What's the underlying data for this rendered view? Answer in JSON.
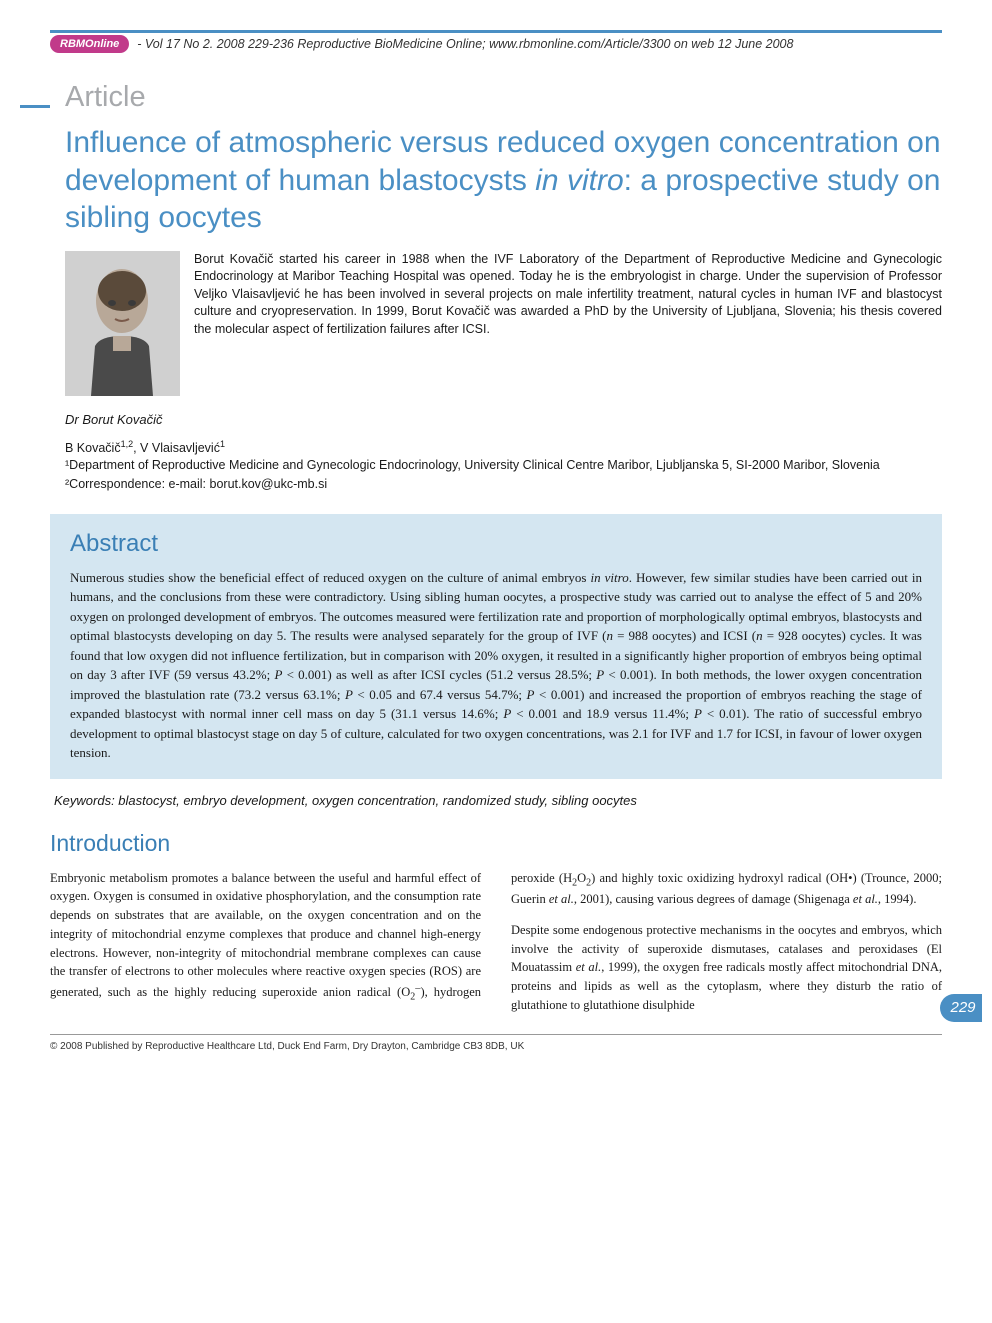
{
  "header": {
    "logo_text": "RBMOnline",
    "citation": "- Vol 17 No 2. 2008 229-236 Reproductive BioMedicine Online; www.rbmonline.com/Article/3300 on web 12 June 2008"
  },
  "article_label": "Article",
  "title_parts": {
    "pre": "Influence of atmospheric versus reduced oxygen concentration on development of human blastocysts ",
    "italic": "in vitro",
    "post": ": a prospective study on sibling oocytes"
  },
  "bio": "Borut Kovačič started his career in 1988 when the IVF Laboratory of the Department of Reproductive Medicine and Gynecologic Endocrinology at Maribor Teaching Hospital was opened. Today he is the embryologist in charge. Under the supervision of Professor Veljko Vlaisavljević he has been involved in several projects on male infertility treatment, natural cycles in human IVF and blastocyst culture and cryopreservation. In 1999, Borut Kovačič was awarded a PhD by the University of Ljubljana, Slovenia; his thesis covered the molecular aspect of fertilization failures after ICSI.",
  "author_name": "Dr Borut Kovačič",
  "authors_line_html": "B Kovačič<sup>1,2</sup>, V Vlaisavljević<sup>1</sup>",
  "affiliation1": "¹Department of Reproductive Medicine and Gynecologic Endocrinology, University Clinical Centre Maribor, Ljubljanska 5, SI-2000 Maribor, Slovenia",
  "affiliation2": "²Correspondence: e-mail: borut.kov@ukc-mb.si",
  "abstract": {
    "heading": "Abstract",
    "text_html": "Numerous studies show the beneficial effect of reduced oxygen on the culture of animal embryos <em>in vitro</em>. However, few similar studies have been carried out in humans, and the conclusions from these were contradictory. Using sibling human oocytes, a prospective study was carried out to analyse the effect of 5 and 20% oxygen on prolonged development of embryos. The outcomes measured were fertilization rate and proportion of morphologically optimal embryos, blastocysts and optimal blastocysts developing on day 5. The results were analysed separately for the group of IVF (<em>n</em> = 988 oocytes) and ICSI (<em>n</em> = 928 oocytes) cycles. It was found that low oxygen did not influence fertilization, but in comparison with 20% oxygen, it resulted in a significantly higher proportion of embryos being optimal on day 3 after IVF (59 versus 43.2%; <em>P</em> < 0.001) as well as after ICSI cycles (51.2 versus 28.5%; <em>P</em> < 0.001). In both methods, the lower oxygen concentration improved the blastulation rate (73.2 versus 63.1%; <em>P</em> < 0.05 and 67.4 versus 54.7%; <em>P</em> < 0.001) and increased the proportion of embryos reaching the stage of expanded blastocyst with normal inner cell mass on day 5 (31.1 versus 14.6%; <em>P</em> < 0.001 and 18.9 versus 11.4%; <em>P</em> < 0.01). The ratio of successful embryo development to optimal blastocyst stage on day 5 of culture, calculated for two oxygen concentrations, was 2.1 for IVF and 1.7 for ICSI, in favour of lower oxygen tension."
  },
  "keywords": "Keywords: blastocyst, embryo development, oxygen concentration, randomized study, sibling oocytes",
  "introduction": {
    "heading": "Introduction",
    "para1_html": "Embryonic metabolism promotes a balance between the useful and harmful effect of oxygen. Oxygen is consumed in oxidative phosphorylation, and the consumption rate depends on substrates that are available, on the oxygen concentration and on the integrity of mitochondrial enzyme complexes that produce and channel high-energy electrons. However, non-integrity of mitochondrial membrane complexes can cause the transfer of electrons to other molecules where reactive oxygen species (ROS) are generated, such as the highly reducing superoxide anion radical (O<sub>2</sub><sup>–</sup>), hydrogen peroxide (H<sub>2</sub>O<sub>2</sub>) and highly toxic oxidizing hydroxyl radical (OH•) (Trounce, 2000; Guerin <em>et al.</em>, 2001), causing various degrees of damage (Shigenaga <em>et al.</em>, 1994).",
    "para2_html": "Despite some endogenous protective mechanisms in the oocytes and embryos, which involve the activity of superoxide dismutases, catalases and peroxidases (El Mouatassim <em>et al.</em>, 1999), the oxygen free radicals mostly affect mitochondrial DNA, proteins and lipids as well as the cytoplasm, where they disturb the ratio of glutathione to glutathione disulphide"
  },
  "page_number": "229",
  "footer": "© 2008 Published by Reproductive Healthcare Ltd, Duck End Farm, Dry Drayton, Cambridge CB3 8DB, UK",
  "colors": {
    "accent_blue": "#4a8fc4",
    "heading_blue": "#3a7fb5",
    "abstract_bg": "#d4e6f1",
    "logo_bg": "#c13a8a",
    "label_gray": "#a7a9ac"
  }
}
